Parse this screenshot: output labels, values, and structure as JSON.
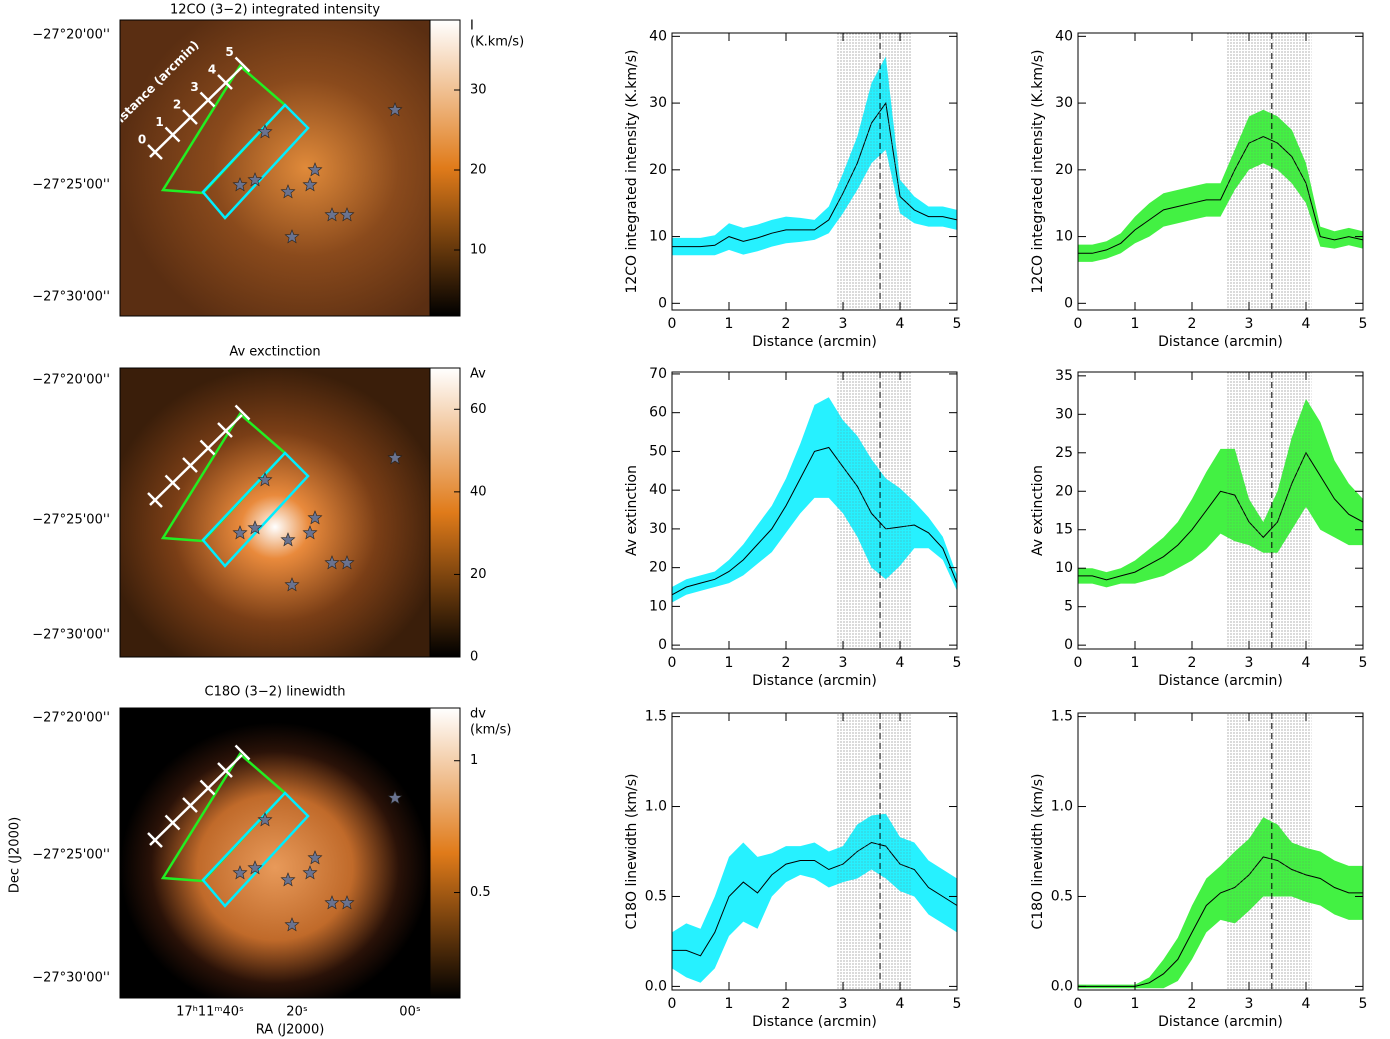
{
  "chart_data": [
    {
      "type": "image",
      "title": "12CO (3−2) integrated intensity",
      "ytick_labels": [
        "−27°20'00''",
        "−27°25'00''",
        "−27°30'00''"
      ],
      "colorbar": {
        "label": [
          "I",
          "(K.km/s)"
        ],
        "lim": [
          1.75,
          38.75
        ],
        "ticks": [
          10,
          20,
          30
        ]
      },
      "scale_label": "distance (arcmin)",
      "scale_ticks": [
        0,
        1,
        2,
        3,
        4,
        5
      ]
    },
    {
      "type": "image",
      "title": "Av exctinction",
      "ytick_labels": [
        "−27°20'00''",
        "−27°25'00''",
        "−27°30'00''"
      ],
      "colorbar": {
        "label": [
          "Av"
        ],
        "lim": [
          0,
          70
        ],
        "ticks": [
          0,
          20,
          40,
          60
        ]
      }
    },
    {
      "type": "image",
      "title": "C18O (3−2) linewidth",
      "ytick_labels": [
        "−27°20'00''",
        "−27°25'00''",
        "−27°30'00''"
      ],
      "xtick_labels": [
        "17ʰ11ᵐ40ˢ",
        "20ˢ",
        "00ˢ"
      ],
      "xlabel": "RA (J2000)",
      "ylabel": "Dec (J2000)",
      "colorbar": {
        "label": [
          "dv",
          "(km/s)"
        ],
        "lim": [
          0.1,
          1.2
        ],
        "ticks": [
          0.5,
          1
        ]
      }
    },
    {
      "type": "line",
      "xlabel": "Distance (arcmin)",
      "ylabel": "12CO integrated intensity (K.km/s)",
      "x": [
        0,
        0.25,
        0.5,
        0.75,
        1,
        1.25,
        1.5,
        1.75,
        2,
        2.25,
        2.5,
        2.75,
        3,
        3.25,
        3.5,
        3.75,
        4,
        4.25,
        4.5,
        4.75,
        5
      ],
      "xlim": [
        0,
        5
      ],
      "xticks": [
        0,
        1,
        2,
        3,
        4,
        5
      ],
      "ylim": [
        -1,
        40.5
      ],
      "yticks": [
        0,
        10,
        20,
        30,
        40
      ],
      "shaded_region": [
        2.9,
        4.2
      ],
      "marker_x": 3.65,
      "series": [
        {
          "color": "#00eeff",
          "values": [
            8.5,
            8.5,
            8.5,
            8.7,
            10,
            9.3,
            9.8,
            10.5,
            11,
            11,
            11,
            12.5,
            16.5,
            21,
            27,
            30,
            16,
            14,
            13,
            13,
            12.5
          ],
          "errors": [
            1.3,
            1.3,
            1.3,
            1.5,
            2,
            2,
            2,
            2,
            2,
            1.8,
            1.5,
            2,
            3,
            4,
            6,
            7,
            2.5,
            2,
            1.5,
            1.5,
            1.5
          ]
        }
      ]
    },
    {
      "type": "line",
      "xlabel": "Distance (arcmin)",
      "ylabel": "12CO integrated intensity (K.km/s)",
      "x": [
        0,
        0.25,
        0.5,
        0.75,
        1,
        1.25,
        1.5,
        1.75,
        2,
        2.25,
        2.5,
        2.75,
        3,
        3.25,
        3.5,
        3.75,
        4,
        4.25,
        4.5,
        4.75,
        5
      ],
      "xlim": [
        0,
        5
      ],
      "xticks": [
        0,
        1,
        2,
        3,
        4,
        5
      ],
      "ylim": [
        -1,
        40.5
      ],
      "yticks": [
        0,
        10,
        20,
        30,
        40
      ],
      "shaded_region": [
        2.6,
        4.1
      ],
      "marker_x": 3.4,
      "series": [
        {
          "color": "#22ee22",
          "values": [
            7.5,
            7.5,
            8,
            9,
            11,
            12.5,
            14,
            14.5,
            15,
            15.5,
            15.5,
            20,
            24,
            25,
            24,
            22,
            18,
            10,
            9.5,
            10,
            9.5
          ],
          "errors": [
            1.3,
            1.3,
            1.3,
            1.5,
            2,
            2.5,
            2.5,
            2.5,
            2.5,
            2.5,
            2.5,
            3,
            4,
            4,
            4,
            4,
            3,
            1.5,
            1.3,
            1.3,
            1.3
          ]
        }
      ]
    },
    {
      "type": "line",
      "xlabel": "Distance (arcmin)",
      "ylabel": "Av extinction",
      "x": [
        0,
        0.25,
        0.5,
        0.75,
        1,
        1.25,
        1.5,
        1.75,
        2,
        2.25,
        2.5,
        2.75,
        3,
        3.25,
        3.5,
        3.75,
        4,
        4.25,
        4.5,
        4.75,
        5
      ],
      "xlim": [
        0,
        5
      ],
      "xticks": [
        0,
        1,
        2,
        3,
        4,
        5
      ],
      "ylim": [
        -1,
        70.5
      ],
      "yticks": [
        0,
        10,
        20,
        30,
        40,
        50,
        60,
        70
      ],
      "shaded_region": [
        2.9,
        4.2
      ],
      "marker_x": 3.65,
      "series": [
        {
          "color": "#00eeff",
          "values": [
            13,
            15,
            16,
            17,
            19,
            22,
            26,
            30,
            36,
            43,
            50,
            51,
            46,
            41,
            34,
            30,
            30.5,
            31,
            29,
            25,
            16
          ],
          "errors": [
            2,
            2,
            2,
            2,
            3,
            4,
            5,
            6,
            7,
            9,
            12,
            13,
            12,
            13,
            14,
            13,
            10,
            6,
            4,
            3,
            2
          ]
        }
      ]
    },
    {
      "type": "line",
      "xlabel": "Distance (arcmin)",
      "ylabel": "Av extinction",
      "x": [
        0,
        0.25,
        0.5,
        0.75,
        1,
        1.25,
        1.5,
        1.75,
        2,
        2.25,
        2.5,
        2.75,
        3,
        3.25,
        3.5,
        3.75,
        4,
        4.25,
        4.5,
        4.75,
        5
      ],
      "xlim": [
        0,
        5
      ],
      "xticks": [
        0,
        1,
        2,
        3,
        4,
        5
      ],
      "ylim": [
        -0.5,
        35.5
      ],
      "yticks": [
        0,
        5,
        10,
        15,
        20,
        25,
        30,
        35
      ],
      "shaded_region": [
        2.6,
        4.1
      ],
      "marker_x": 3.4,
      "series": [
        {
          "color": "#22ee22",
          "values": [
            9,
            9,
            8.5,
            9,
            9.5,
            10.5,
            11.5,
            13,
            15,
            17.5,
            20,
            19.5,
            16,
            14,
            16,
            21,
            25,
            22,
            19,
            17,
            16
          ],
          "errors": [
            1,
            1,
            1,
            1,
            1.5,
            2,
            2.5,
            3,
            4,
            5,
            5.5,
            6,
            3,
            2,
            4,
            6,
            7,
            7,
            5,
            4,
            3
          ]
        }
      ]
    },
    {
      "type": "line",
      "xlabel": "Distance (arcmin)",
      "ylabel": "C18O linewidth (km/s)",
      "x": [
        0,
        0.25,
        0.5,
        0.75,
        1,
        1.25,
        1.5,
        1.75,
        2,
        2.25,
        2.5,
        2.75,
        3,
        3.25,
        3.5,
        3.75,
        4,
        4.25,
        4.5,
        4.75,
        5
      ],
      "xlim": [
        0,
        5
      ],
      "xticks": [
        0,
        1,
        2,
        3,
        4,
        5
      ],
      "ylim": [
        -0.02,
        1.52
      ],
      "yticks": [
        {
          "value": 0,
          "label": "0.0"
        },
        0.5,
        {
          "value": 1,
          "label": "1.0"
        },
        1.5
      ],
      "shaded_region": [
        2.9,
        4.2
      ],
      "marker_x": 3.65,
      "series": [
        {
          "color": "#00eeff",
          "values": [
            0.2,
            0.2,
            0.17,
            0.3,
            0.5,
            0.58,
            0.52,
            0.62,
            0.68,
            0.7,
            0.7,
            0.65,
            0.68,
            0.75,
            0.8,
            0.78,
            0.68,
            0.65,
            0.55,
            0.5,
            0.45
          ],
          "errors": [
            0.1,
            0.15,
            0.15,
            0.2,
            0.22,
            0.22,
            0.2,
            0.12,
            0.1,
            0.08,
            0.1,
            0.1,
            0.1,
            0.15,
            0.15,
            0.18,
            0.15,
            0.15,
            0.15,
            0.15,
            0.15
          ]
        }
      ]
    },
    {
      "type": "line",
      "xlabel": "Distance (arcmin)",
      "ylabel": "C18O linewidth (km/s)",
      "x": [
        0,
        0.25,
        0.5,
        0.75,
        1,
        1.25,
        1.5,
        1.75,
        2,
        2.25,
        2.5,
        2.75,
        3,
        3.25,
        3.5,
        3.75,
        4,
        4.25,
        4.5,
        4.75,
        5
      ],
      "xlim": [
        0,
        5
      ],
      "xticks": [
        0,
        1,
        2,
        3,
        4,
        5
      ],
      "ylim": [
        -0.02,
        1.52
      ],
      "yticks": [
        {
          "value": 0,
          "label": "0.0"
        },
        0.5,
        {
          "value": 1,
          "label": "1.0"
        },
        1.5
      ],
      "shaded_region": [
        2.6,
        4.1
      ],
      "marker_x": 3.4,
      "series": [
        {
          "color": "#22ee22",
          "values": [
            0,
            0,
            0,
            0,
            0,
            0.02,
            0.07,
            0.15,
            0.3,
            0.45,
            0.52,
            0.55,
            0.62,
            0.72,
            0.7,
            0.65,
            0.62,
            0.6,
            0.55,
            0.52,
            0.52
          ],
          "errors": [
            0.01,
            0.01,
            0.01,
            0.01,
            0.01,
            0.03,
            0.08,
            0.12,
            0.15,
            0.15,
            0.15,
            0.2,
            0.2,
            0.22,
            0.2,
            0.15,
            0.15,
            0.15,
            0.15,
            0.15,
            0.15
          ]
        }
      ]
    }
  ]
}
